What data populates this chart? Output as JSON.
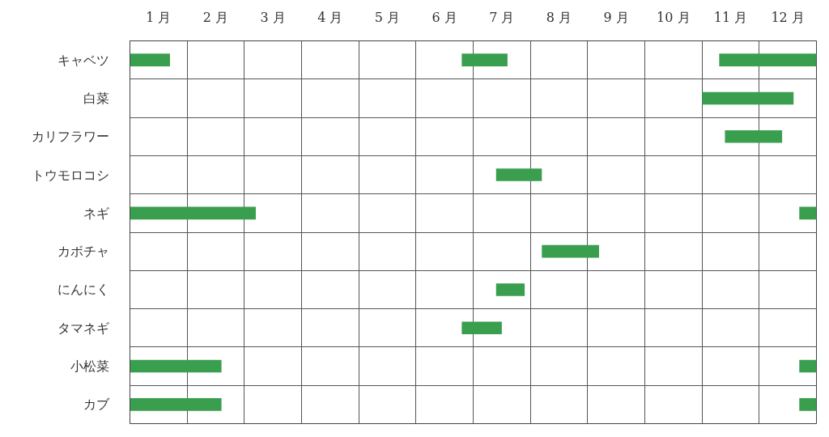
{
  "chart_data": {
    "type": "bar",
    "orientation": "horizontal",
    "categories": [
      "キャベツ",
      "白菜",
      "カリフラワー",
      "トウモロコシ",
      "ネギ",
      "カボチャ",
      "にんにく",
      "タマネギ",
      "小松菜",
      "カブ"
    ],
    "series": [
      {
        "color": "#3a9e4f",
        "base": [
          0,
          null,
          null,
          null,
          0,
          null,
          null,
          null,
          0,
          0
        ],
        "values": [
          0.7,
          null,
          null,
          null,
          2.2,
          null,
          null,
          null,
          1.6,
          1.6
        ]
      },
      {
        "color": "#3a9e4f",
        "base": [
          5.8,
          null,
          null,
          6.4,
          null,
          7.2,
          6.4,
          5.8,
          null,
          null
        ],
        "values": [
          0.8,
          null,
          null,
          0.8,
          null,
          1.0,
          0.5,
          0.7,
          null,
          null
        ]
      },
      {
        "color": "#3a9e4f",
        "base": [
          10.3,
          10.0,
          10.4,
          null,
          11.7,
          null,
          null,
          null,
          11.7,
          11.7
        ],
        "values": [
          1.7,
          1.6,
          1.0,
          null,
          0.3,
          null,
          null,
          null,
          0.3,
          0.3
        ]
      }
    ],
    "xlim": [
      0,
      12
    ],
    "xticks": [
      {
        "value": 0,
        "label": null
      },
      {
        "value": 0.5,
        "label": "1 月"
      },
      {
        "value": 1,
        "label": null
      },
      {
        "value": 1.5,
        "label": "2 月"
      },
      {
        "value": 2,
        "label": null
      },
      {
        "value": 2.5,
        "label": "3 月"
      },
      {
        "value": 3,
        "label": null
      },
      {
        "value": 3.5,
        "label": "4 月"
      },
      {
        "value": 4,
        "label": null
      },
      {
        "value": 4.5,
        "label": "5 月"
      },
      {
        "value": 5,
        "label": null
      },
      {
        "value": 5.5,
        "label": "6 月"
      },
      {
        "value": 6,
        "label": null
      },
      {
        "value": 6.5,
        "label": "7 月"
      },
      {
        "value": 7,
        "label": null
      },
      {
        "value": 7.5,
        "label": "8 月"
      },
      {
        "value": 8,
        "label": null
      },
      {
        "value": 8.5,
        "label": "9 月"
      },
      {
        "value": 9,
        "label": null
      },
      {
        "value": 9.5,
        "label": "10 月"
      },
      {
        "value": 10,
        "label": null
      },
      {
        "value": 10.5,
        "label": "11 月"
      },
      {
        "value": 11,
        "label": null
      },
      {
        "value": 11.5,
        "label": "12 月"
      },
      {
        "value": 12,
        "label": null
      }
    ],
    "grid": true
  }
}
